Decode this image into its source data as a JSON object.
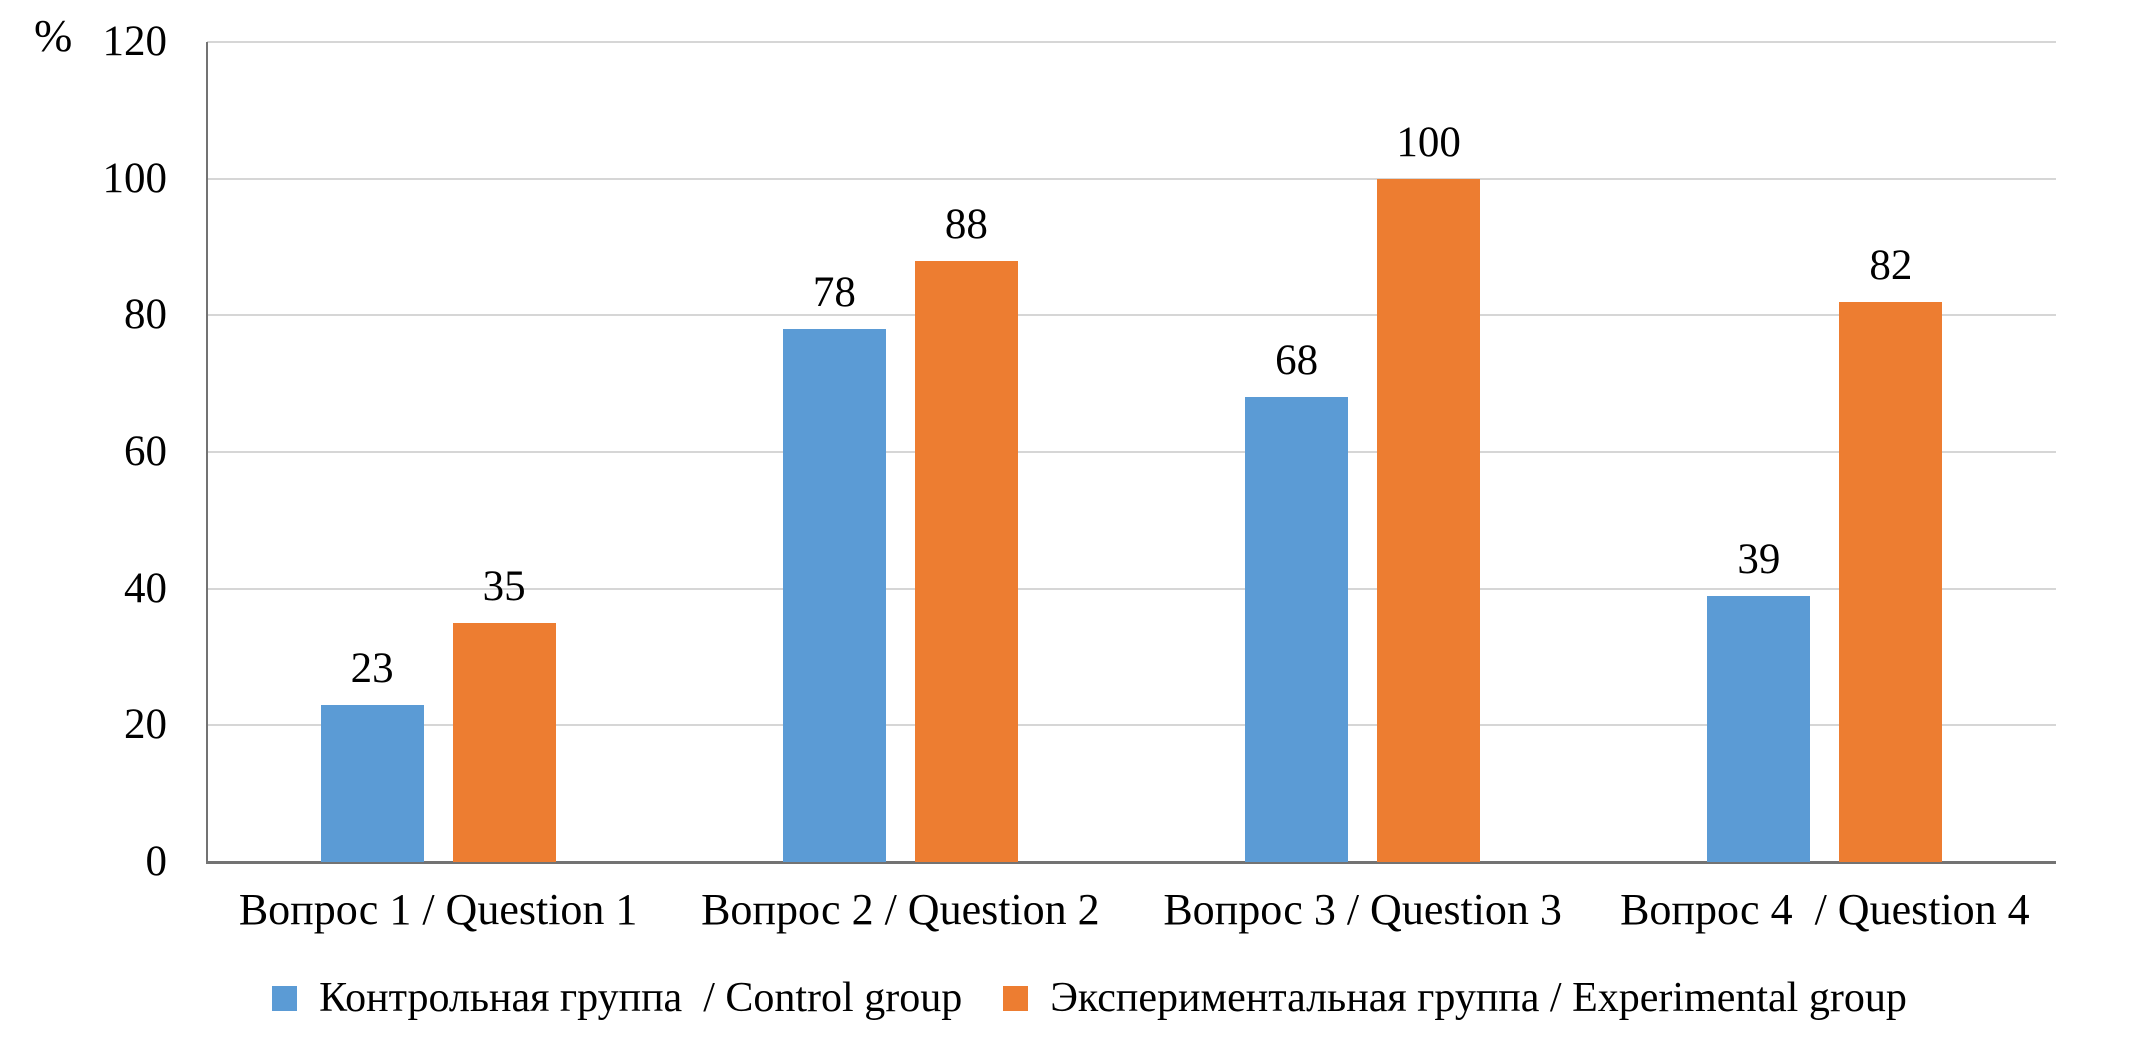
{
  "chart_data": {
    "type": "bar",
    "title": "",
    "y_axis_unit_label": "%",
    "categories": [
      "Вопрос 1 / Question 1",
      "Вопрос 2 / Question 2",
      "Вопрос 3 / Question 3",
      "Вопрос 4  / Question 4"
    ],
    "series": [
      {
        "name": "Контрольная группа  / Control group",
        "color": "#5B9BD5",
        "values": [
          23,
          78,
          68,
          39
        ]
      },
      {
        "name": "Экспериментальная группа / Experimental group",
        "color": "#ED7D31",
        "values": [
          35,
          88,
          100,
          82
        ]
      }
    ],
    "ylim": [
      0,
      120
    ],
    "yticks": [
      0,
      20,
      40,
      60,
      80,
      100,
      120
    ],
    "grid": true,
    "data_labels": true,
    "legend_position": "bottom",
    "axis_color": "#737373",
    "gridline_color": "#d6d6d6",
    "text_color": "#000000",
    "background_color": "#ffffff"
  }
}
